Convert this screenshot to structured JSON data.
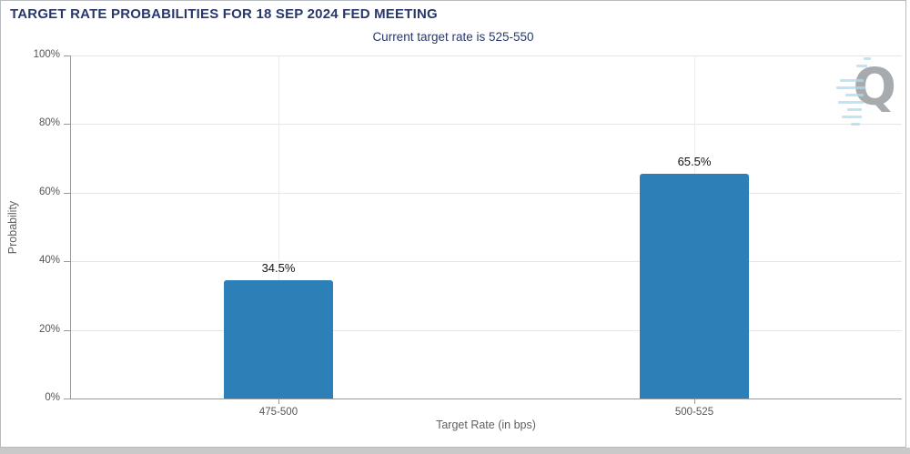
{
  "header": {
    "title": "TARGET RATE PROBABILITIES FOR 18 SEP 2024 FED MEETING",
    "subtitle": "Current target rate is 525-550"
  },
  "chart_data": {
    "type": "bar",
    "title": "TARGET RATE PROBABILITIES FOR 18 SEP 2024 FED MEETING",
    "subtitle": "Current target rate is 525-550",
    "categories": [
      "475-500",
      "500-525"
    ],
    "values": [
      34.5,
      65.5
    ],
    "value_labels": [
      "34.5%",
      "65.5%"
    ],
    "xlabel": "Target Rate (in bps)",
    "ylabel": "Probability",
    "ylim": [
      0,
      100
    ],
    "yticks": [
      0,
      20,
      40,
      60,
      80,
      100
    ],
    "ytick_labels": [
      "0%",
      "20%",
      "40%",
      "60%",
      "80%",
      "100%"
    ],
    "grid": true,
    "legend_position": "none",
    "bar_color": "#2d7fb8"
  },
  "watermark": {
    "letter": "Q",
    "letter_color": "#a8abae",
    "dash_color": "#a9dcf0"
  },
  "colors": {
    "title_text": "#28386b",
    "axis_line": "#9a9a9a",
    "gridline": "#e6e6e6",
    "tick_text": "#555555",
    "border": "#b9bcbe",
    "bottom_strip": "#c9c9c9"
  }
}
